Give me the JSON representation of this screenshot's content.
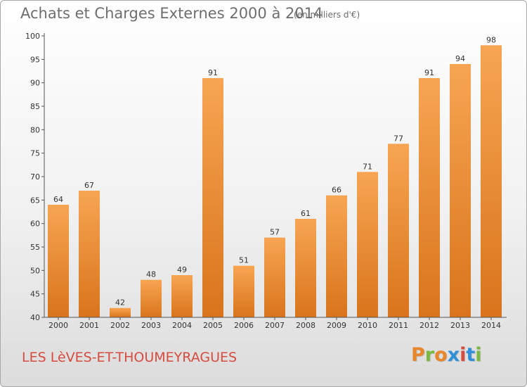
{
  "header": {
    "title": "Achats et Charges Externes 2000 à 2014",
    "subtitle": "(en milliers d'€)"
  },
  "footer": {
    "place_name": "LES LèVES-ET-THOUMEYRAGUES",
    "logo_text": "Proxiti"
  },
  "colors": {
    "bar_light": "#f7a552",
    "bar_dark": "#d9741c",
    "place_name": "#d84b3f",
    "logo": [
      "#e8862a",
      "#7ab83e",
      "#e8862a",
      "#2f8fd8",
      "#d84b3f",
      "#2f8fd8",
      "#7ab83e"
    ]
  },
  "chart_data": {
    "type": "bar",
    "title": "Achats et Charges Externes 2000 à 2014",
    "subtitle": "(en milliers d'€)",
    "categories": [
      "2000",
      "2001",
      "2002",
      "2003",
      "2004",
      "2005",
      "2006",
      "2007",
      "2008",
      "2009",
      "2010",
      "2011",
      "2012",
      "2013",
      "2014"
    ],
    "values": [
      64,
      67,
      42,
      48,
      49,
      91,
      51,
      57,
      61,
      66,
      71,
      77,
      91,
      94,
      98
    ],
    "ylim": [
      40,
      100
    ],
    "yticks": [
      "40",
      "45",
      "50",
      "55",
      "60",
      "65",
      "70",
      "75",
      "80",
      "85",
      "90",
      "95",
      "100"
    ],
    "xlabel": "",
    "ylabel": "",
    "grid": false,
    "legend": "none"
  }
}
